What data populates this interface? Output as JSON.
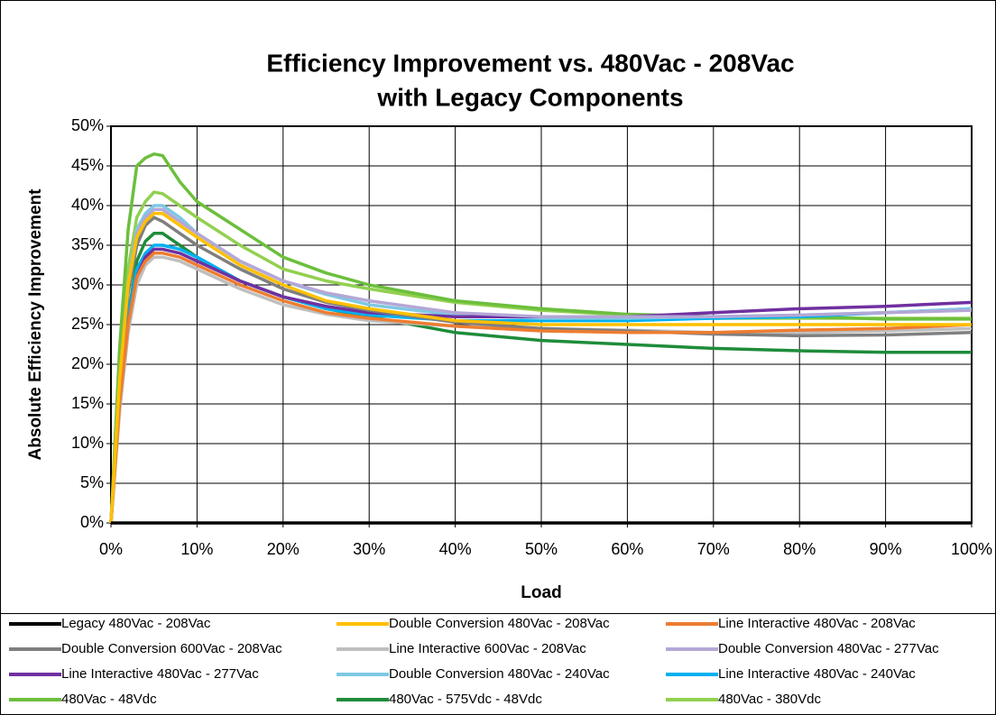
{
  "chart_data": {
    "type": "line",
    "title": [
      "Efficiency Improvement vs. 480Vac - 208Vac",
      "with Legacy Components"
    ],
    "x_label": "Load",
    "y_label": "Absolute Efficiency Improvement",
    "x": [
      0,
      1,
      2,
      3,
      4,
      5,
      6,
      8,
      10,
      15,
      20,
      25,
      30,
      40,
      50,
      60,
      70,
      80,
      90,
      100
    ],
    "xlim": [
      0,
      100
    ],
    "xticks": [
      {
        "value": 0,
        "label": "0%"
      },
      {
        "value": 10,
        "label": "10%"
      },
      {
        "value": 20,
        "label": "20%"
      },
      {
        "value": 30,
        "label": "30%"
      },
      {
        "value": 40,
        "label": "40%"
      },
      {
        "value": 50,
        "label": "50%"
      },
      {
        "value": 60,
        "label": "60%"
      },
      {
        "value": 70,
        "label": "70%"
      },
      {
        "value": 80,
        "label": "80%"
      },
      {
        "value": 90,
        "label": "90%"
      },
      {
        "value": 100,
        "label": "100%"
      }
    ],
    "ylim": [
      0,
      50
    ],
    "yticks": [
      {
        "value": 0,
        "label": "0%"
      },
      {
        "value": 5,
        "label": "5%"
      },
      {
        "value": 10,
        "label": "10%"
      },
      {
        "value": 15,
        "label": "15%"
      },
      {
        "value": 20,
        "label": "20%"
      },
      {
        "value": 25,
        "label": "25%"
      },
      {
        "value": 30,
        "label": "30%"
      },
      {
        "value": 35,
        "label": "35%"
      },
      {
        "value": 40,
        "label": "40%"
      },
      {
        "value": 45,
        "label": "45%"
      },
      {
        "value": 50,
        "label": "50%"
      }
    ],
    "grid": true,
    "legend": "bottom",
    "series": [
      {
        "name": "Legacy 480Vac - 208Vac",
        "color": "#000000",
        "values": [
          0,
          0,
          0,
          0,
          0,
          0,
          0,
          0,
          0,
          0,
          0,
          0,
          0,
          0,
          0,
          0,
          0,
          0,
          0,
          0
        ]
      },
      {
        "name": "Double Conversion 480Vac - 208Vac",
        "color": "#ffc000",
        "values": [
          0,
          18,
          30,
          36,
          38,
          39,
          39,
          37.5,
          36,
          32.5,
          30,
          28,
          27,
          25.5,
          25,
          25,
          25,
          25,
          25,
          25
        ]
      },
      {
        "name": "Line Interactive 480Vac - 208Vac",
        "color": "#ed7d31",
        "values": [
          0,
          15,
          25,
          31,
          33,
          34,
          34,
          33.5,
          32.5,
          30,
          28,
          26.5,
          25.8,
          24.8,
          24.2,
          24,
          24,
          24.3,
          24.5,
          25
        ]
      },
      {
        "name": "Double Conversion 600Vac - 208Vac",
        "color": "#7f7f7f",
        "values": [
          0,
          17,
          29,
          35,
          37.5,
          38.5,
          38,
          36.5,
          35,
          32,
          29.5,
          27.8,
          26.8,
          25.3,
          24.5,
          24.2,
          23.8,
          23.6,
          23.7,
          24
        ]
      },
      {
        "name": "Line Interactive 600Vac - 208Vac",
        "color": "#bfbfbf",
        "values": [
          0,
          14,
          24,
          30,
          32.5,
          33.5,
          33.5,
          33,
          32,
          29.5,
          27.5,
          26.3,
          25.5,
          24.8,
          24.5,
          24.3,
          24,
          24,
          24.2,
          24.5
        ]
      },
      {
        "name": "Double Conversion 480Vac - 277Vac",
        "color": "#b4a7d6",
        "values": [
          0,
          18,
          30,
          36.5,
          38.5,
          39.5,
          39.5,
          38,
          36.5,
          33,
          30.5,
          29,
          28,
          26.5,
          26,
          26,
          26,
          26.2,
          26.5,
          26.8
        ]
      },
      {
        "name": "Line Interactive 480Vac - 277Vac",
        "color": "#7030a0",
        "values": [
          0,
          15,
          25,
          31,
          33.5,
          34.5,
          34.5,
          34,
          33,
          30.5,
          28.5,
          27.3,
          26.5,
          26,
          26,
          26,
          26.5,
          27,
          27.3,
          27.8
        ]
      },
      {
        "name": "Double Conversion 480Vac - 240Vac",
        "color": "#7ec8e3",
        "values": [
          0,
          18,
          30,
          37,
          39,
          40,
          40,
          38.5,
          36.5,
          33,
          30.5,
          28.8,
          27.5,
          26.2,
          25.8,
          25.8,
          26,
          26.2,
          26.5,
          27
        ]
      },
      {
        "name": "Line Interactive 480Vac - 240Vac",
        "color": "#00b0f0",
        "values": [
          0,
          15,
          26,
          32,
          34,
          35,
          35,
          34.5,
          33.5,
          30.5,
          28.5,
          27,
          26.2,
          25.5,
          25.5,
          25.5,
          25.8,
          26,
          26.5,
          27
        ]
      },
      {
        "name": "480Vac - 48Vdc",
        "color": "#6cbf3c",
        "values": [
          0,
          22,
          37,
          45,
          46,
          46.5,
          46.3,
          43,
          40.5,
          37,
          33.5,
          31.5,
          30,
          28,
          27,
          26.3,
          26,
          26,
          25.7,
          25.7
        ]
      },
      {
        "name": "480Vac - 575Vdc - 48Vdc",
        "color": "#1e8c3a",
        "values": [
          0,
          16,
          26,
          33,
          35.5,
          36.5,
          36.5,
          35,
          33.5,
          30.5,
          28.5,
          27,
          26,
          24,
          23,
          22.5,
          22,
          21.7,
          21.5,
          21.5
        ]
      },
      {
        "name": "480Vac - 380Vdc",
        "color": "#92d050",
        "values": [
          0,
          19,
          32,
          38.5,
          40.5,
          41.7,
          41.5,
          40,
          38.5,
          35,
          32,
          30.5,
          29.5,
          27.8,
          26.8,
          26.2,
          25.8,
          25.8,
          25.8,
          25.8
        ]
      }
    ]
  }
}
